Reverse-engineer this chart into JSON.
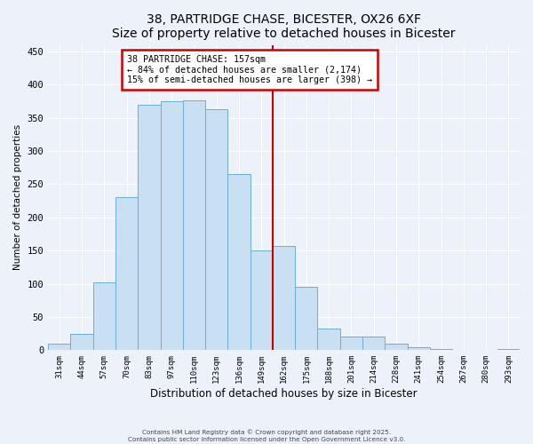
{
  "title": "38, PARTRIDGE CHASE, BICESTER, OX26 6XF",
  "subtitle": "Size of property relative to detached houses in Bicester",
  "xlabel": "Distribution of detached houses by size in Bicester",
  "ylabel": "Number of detached properties",
  "bar_labels": [
    "31sqm",
    "44sqm",
    "57sqm",
    "70sqm",
    "83sqm",
    "97sqm",
    "110sqm",
    "123sqm",
    "136sqm",
    "149sqm",
    "162sqm",
    "175sqm",
    "188sqm",
    "201sqm",
    "214sqm",
    "228sqm",
    "241sqm",
    "254sqm",
    "267sqm",
    "280sqm",
    "293sqm"
  ],
  "bar_values": [
    10,
    25,
    102,
    230,
    370,
    375,
    377,
    363,
    265,
    150,
    157,
    96,
    33,
    20,
    20,
    10,
    5,
    2,
    0,
    0,
    2
  ],
  "bar_color": "#c9dff2",
  "bar_edge_color": "#6baed6",
  "vline_x": 9.5,
  "vline_color": "#cc0000",
  "annotation_title": "38 PARTRIDGE CHASE: 157sqm",
  "annotation_line1": "← 84% of detached houses are smaller (2,174)",
  "annotation_line2": "15% of semi-detached houses are larger (398) →",
  "annotation_box_color": "#ffffff",
  "annotation_box_edge": "#cc0000",
  "ylim": [
    0,
    460
  ],
  "yticks": [
    0,
    50,
    100,
    150,
    200,
    250,
    300,
    350,
    400,
    450
  ],
  "background_color": "#edf2fa",
  "grid_color": "#ffffff",
  "footnote1": "Contains HM Land Registry data © Crown copyright and database right 2025.",
  "footnote2": "Contains public sector information licensed under the Open Government Licence v3.0."
}
